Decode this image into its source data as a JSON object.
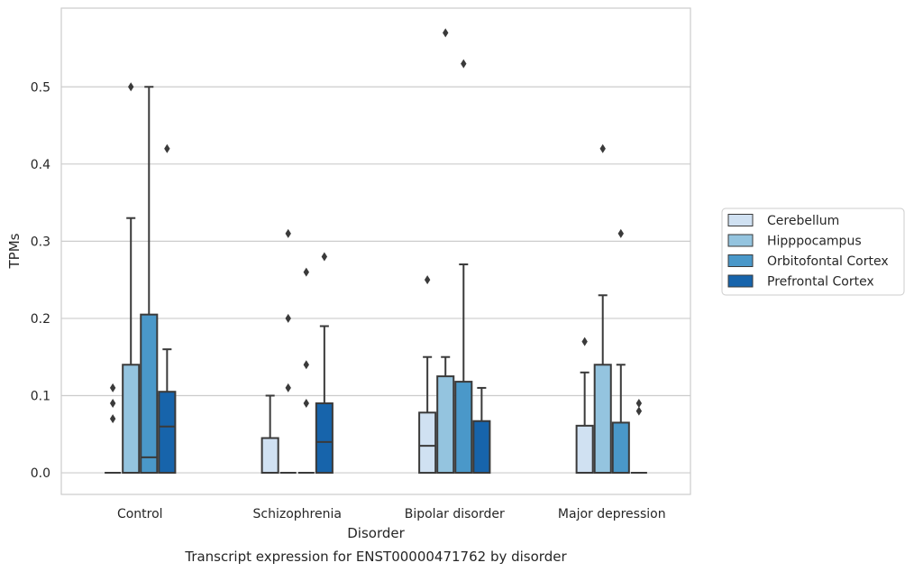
{
  "chart_data": {
    "type": "box",
    "title": "Transcript expression for ENST00000471762 by disorder",
    "xlabel": "Disorder",
    "ylabel": "TPMs",
    "ylim": [
      -0.028,
      0.602
    ],
    "yticks": [
      0.0,
      0.1,
      0.2,
      0.3,
      0.4,
      0.5
    ],
    "ytick_labels": [
      "0.0",
      "0.1",
      "0.2",
      "0.3",
      "0.4",
      "0.5"
    ],
    "grid": "horizontal",
    "legend_position": "right",
    "categories": [
      "Control",
      "Schizophrenia",
      "Bipolar disorder",
      "Major depression"
    ],
    "series": [
      {
        "name": "Cerebellum",
        "color": "#d0e1f2",
        "boxes": [
          {
            "q1": 0,
            "median": 0,
            "q3": 0,
            "whisker_low": 0,
            "whisker_high": 0,
            "outliers": [
              0.07,
              0.09,
              0.11
            ]
          },
          {
            "q1": 0,
            "median": 0,
            "q3": 0.045,
            "whisker_low": 0,
            "whisker_high": 0.1,
            "outliers": []
          },
          {
            "q1": 0,
            "median": 0.035,
            "q3": 0.078,
            "whisker_low": 0,
            "whisker_high": 0.15,
            "outliers": [
              0.25
            ]
          },
          {
            "q1": 0,
            "median": 0,
            "q3": 0.061,
            "whisker_low": 0,
            "whisker_high": 0.13,
            "outliers": [
              0.17
            ]
          }
        ]
      },
      {
        "name": "Hipppocampus",
        "color": "#94c4df",
        "boxes": [
          {
            "q1": 0,
            "median": 0,
            "q3": 0.14,
            "whisker_low": 0,
            "whisker_high": 0.33,
            "outliers": [
              0.5
            ]
          },
          {
            "q1": 0,
            "median": 0,
            "q3": 0,
            "whisker_low": 0,
            "whisker_high": 0,
            "outliers": [
              0.11,
              0.2,
              0.31
            ]
          },
          {
            "q1": 0,
            "median": 0,
            "q3": 0.125,
            "whisker_low": 0,
            "whisker_high": 0.15,
            "outliers": [
              0.57
            ]
          },
          {
            "q1": 0,
            "median": 0,
            "q3": 0.14,
            "whisker_low": 0,
            "whisker_high": 0.23,
            "outliers": [
              0.42
            ]
          }
        ]
      },
      {
        "name": "Orbitofontal Cortex",
        "color": "#4a98c9",
        "boxes": [
          {
            "q1": 0,
            "median": 0.02,
            "q3": 0.205,
            "whisker_low": 0,
            "whisker_high": 0.5,
            "outliers": []
          },
          {
            "q1": 0,
            "median": 0,
            "q3": 0,
            "whisker_low": 0,
            "whisker_high": 0,
            "outliers": [
              0.09,
              0.14,
              0.26
            ]
          },
          {
            "q1": 0,
            "median": 0,
            "q3": 0.118,
            "whisker_low": 0,
            "whisker_high": 0.27,
            "outliers": [
              0.53
            ]
          },
          {
            "q1": 0,
            "median": 0,
            "q3": 0.065,
            "whisker_low": 0,
            "whisker_high": 0.14,
            "outliers": [
              0.31
            ]
          }
        ]
      },
      {
        "name": "Prefrontal Cortex",
        "color": "#1764ab",
        "boxes": [
          {
            "q1": 0,
            "median": 0.06,
            "q3": 0.105,
            "whisker_low": 0,
            "whisker_high": 0.16,
            "outliers": [
              0.42
            ]
          },
          {
            "q1": 0,
            "median": 0.04,
            "q3": 0.09,
            "whisker_low": 0,
            "whisker_high": 0.19,
            "outliers": [
              0.28
            ]
          },
          {
            "q1": 0,
            "median": 0,
            "q3": 0.067,
            "whisker_low": 0,
            "whisker_high": 0.11,
            "outliers": []
          },
          {
            "q1": 0,
            "median": 0,
            "q3": 0,
            "whisker_low": 0,
            "whisker_high": 0,
            "outliers": [
              0.08,
              0.09
            ]
          }
        ]
      }
    ]
  }
}
